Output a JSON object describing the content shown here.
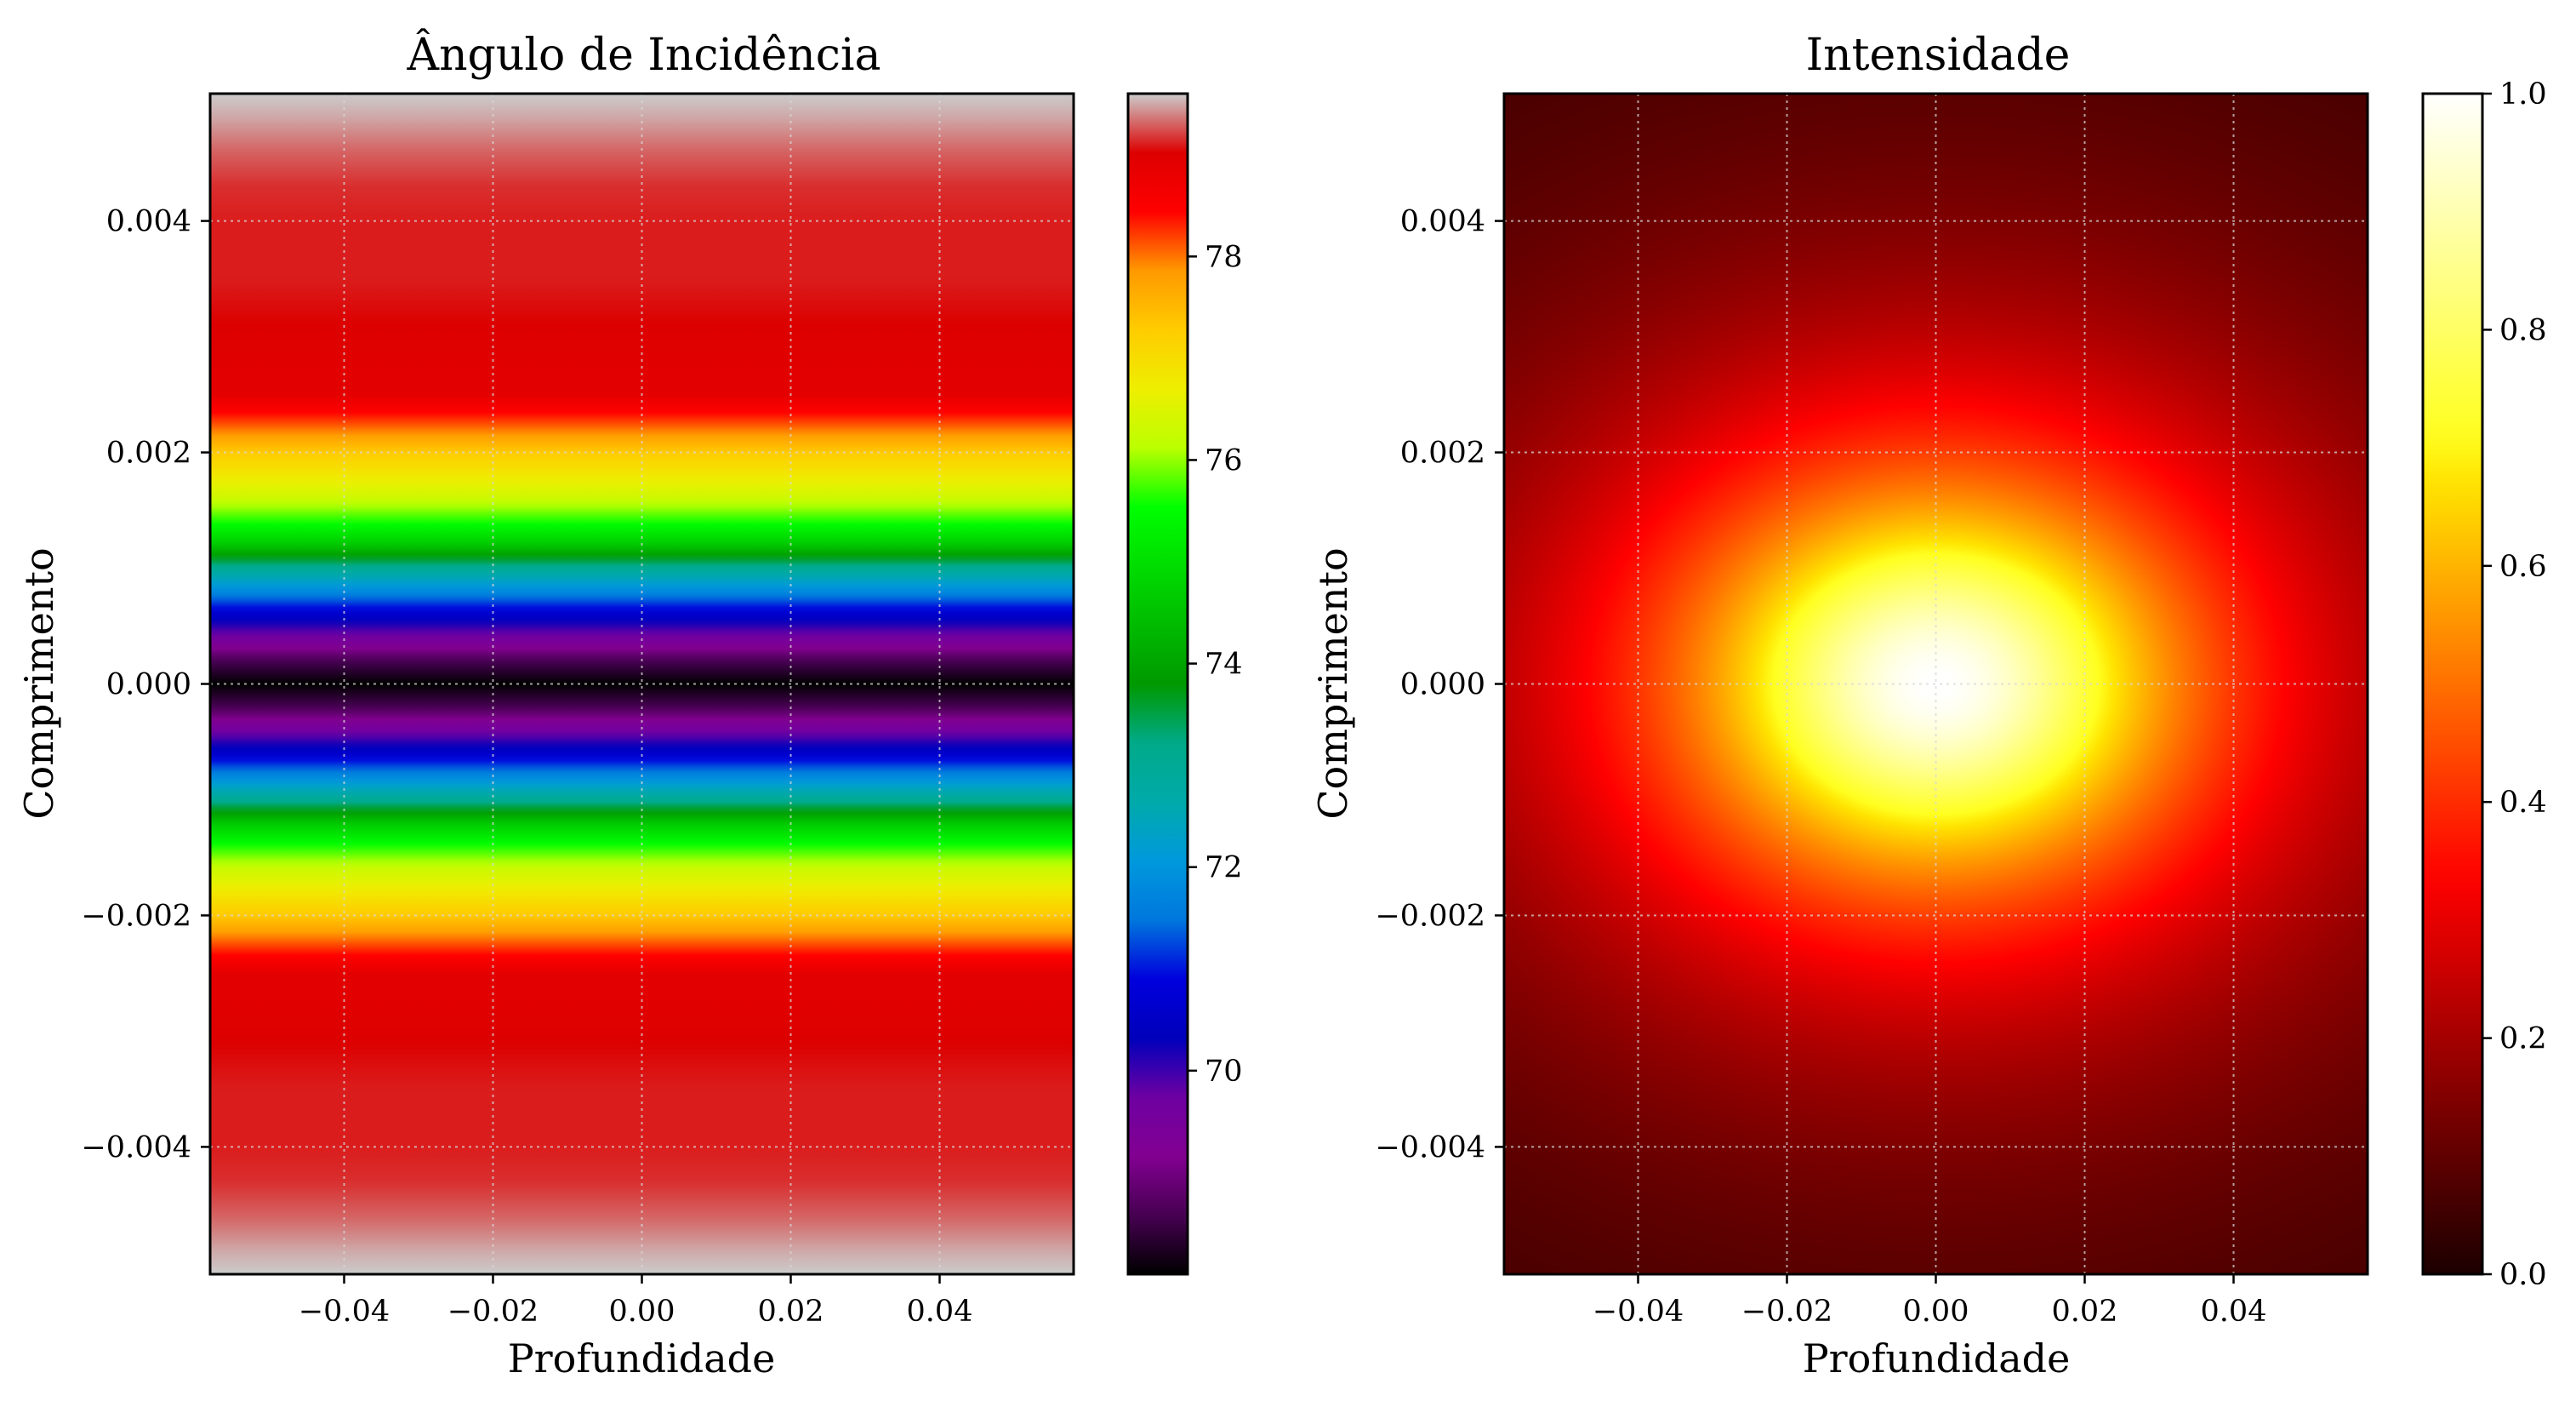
{
  "chart_data": [
    {
      "type": "heatmap",
      "title": "Ângulo de Incidência",
      "xlabel": "Profundidade",
      "ylabel": "Comprimento",
      "xlim": [
        -0.058,
        0.058
      ],
      "ylim": [
        -0.0051,
        0.0051
      ],
      "x_ticks": [
        -0.04,
        -0.02,
        0.0,
        0.02,
        0.04
      ],
      "x_tick_labels": [
        "−0.04",
        "−0.02",
        "0.00",
        "0.02",
        "0.04"
      ],
      "y_ticks": [
        -0.004,
        -0.002,
        0.0,
        0.002,
        0.004
      ],
      "y_tick_labels": [
        "−0.004",
        "−0.002",
        "0.000",
        "0.002",
        "0.004"
      ],
      "grid": true,
      "colormap": "nipy_spectral",
      "colorbar": {
        "range": [
          68.0,
          79.6
        ],
        "ticks": [
          70,
          72,
          74,
          76,
          78
        ],
        "tick_labels": [
          "70",
          "72",
          "74",
          "76",
          "78"
        ]
      },
      "field": {
        "varies_along": "y",
        "profile": [
          {
            "y": 0.0,
            "value": 68.0
          },
          {
            "y": 0.0002,
            "value": 68.6
          },
          {
            "y": 0.0004,
            "value": 69.6
          },
          {
            "y": 0.0006,
            "value": 70.6
          },
          {
            "y": 0.0008,
            "value": 71.8
          },
          {
            "y": 0.001,
            "value": 73.0
          },
          {
            "y": 0.0012,
            "value": 74.6
          },
          {
            "y": 0.0014,
            "value": 75.6
          },
          {
            "y": 0.0016,
            "value": 76.3
          },
          {
            "y": 0.0018,
            "value": 76.8
          },
          {
            "y": 0.002,
            "value": 77.3
          },
          {
            "y": 0.0022,
            "value": 78.0
          },
          {
            "y": 0.0025,
            "value": 78.9
          },
          {
            "y": 0.003,
            "value": 79.0
          },
          {
            "y": 0.0035,
            "value": 79.1
          },
          {
            "y": 0.004,
            "value": 79.1
          },
          {
            "y": 0.0043,
            "value": 79.15
          },
          {
            "y": 0.0046,
            "value": 79.3
          },
          {
            "y": 0.0049,
            "value": 79.5
          },
          {
            "y": 0.0051,
            "value": 79.6
          }
        ]
      }
    },
    {
      "type": "heatmap",
      "title": "Intensidade",
      "xlabel": "Profundidade",
      "ylabel": "Comprimento",
      "xlim": [
        -0.058,
        0.058
      ],
      "ylim": [
        -0.0051,
        0.0051
      ],
      "x_ticks": [
        -0.04,
        -0.02,
        0.0,
        0.02,
        0.04
      ],
      "x_tick_labels": [
        "−0.04",
        "−0.02",
        "0.00",
        "0.02",
        "0.04"
      ],
      "y_ticks": [
        -0.004,
        -0.002,
        0.0,
        0.002,
        0.004
      ],
      "y_tick_labels": [
        "−0.004",
        "−0.002",
        "0.000",
        "0.002",
        "0.004"
      ],
      "grid": true,
      "colormap": "hot",
      "colorbar": {
        "range": [
          0.0,
          1.0
        ],
        "ticks": [
          0.0,
          0.2,
          0.4,
          0.6,
          0.8,
          1.0
        ],
        "tick_labels": [
          "0.0",
          "0.2",
          "0.4",
          "0.6",
          "0.8",
          "1.0"
        ]
      },
      "field": {
        "shape": "gaussian-like peak",
        "peak_value": 1.0,
        "peak_at": [
          0.0,
          0.0
        ]
      }
    }
  ]
}
